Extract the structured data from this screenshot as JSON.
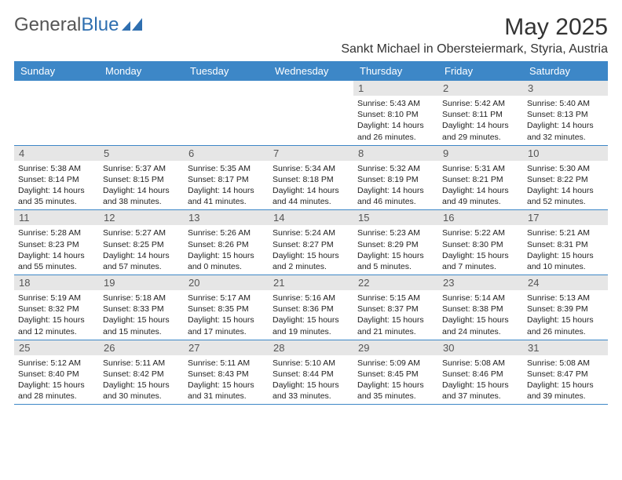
{
  "brand": {
    "part1": "General",
    "part2": "Blue"
  },
  "title": "May 2025",
  "location": "Sankt Michael in Obersteiermark, Styria, Austria",
  "colors": {
    "header_bg": "#3d87c7",
    "header_text": "#ffffff",
    "daynum_bg": "#e6e6e6",
    "border": "#3d87c7",
    "brand_blue": "#2f6fb0"
  },
  "weekdays": [
    "Sunday",
    "Monday",
    "Tuesday",
    "Wednesday",
    "Thursday",
    "Friday",
    "Saturday"
  ],
  "weeks": [
    [
      {
        "n": "",
        "sr": "",
        "ss": "",
        "dl": ""
      },
      {
        "n": "",
        "sr": "",
        "ss": "",
        "dl": ""
      },
      {
        "n": "",
        "sr": "",
        "ss": "",
        "dl": ""
      },
      {
        "n": "",
        "sr": "",
        "ss": "",
        "dl": ""
      },
      {
        "n": "1",
        "sr": "Sunrise: 5:43 AM",
        "ss": "Sunset: 8:10 PM",
        "dl": "Daylight: 14 hours and 26 minutes."
      },
      {
        "n": "2",
        "sr": "Sunrise: 5:42 AM",
        "ss": "Sunset: 8:11 PM",
        "dl": "Daylight: 14 hours and 29 minutes."
      },
      {
        "n": "3",
        "sr": "Sunrise: 5:40 AM",
        "ss": "Sunset: 8:13 PM",
        "dl": "Daylight: 14 hours and 32 minutes."
      }
    ],
    [
      {
        "n": "4",
        "sr": "Sunrise: 5:38 AM",
        "ss": "Sunset: 8:14 PM",
        "dl": "Daylight: 14 hours and 35 minutes."
      },
      {
        "n": "5",
        "sr": "Sunrise: 5:37 AM",
        "ss": "Sunset: 8:15 PM",
        "dl": "Daylight: 14 hours and 38 minutes."
      },
      {
        "n": "6",
        "sr": "Sunrise: 5:35 AM",
        "ss": "Sunset: 8:17 PM",
        "dl": "Daylight: 14 hours and 41 minutes."
      },
      {
        "n": "7",
        "sr": "Sunrise: 5:34 AM",
        "ss": "Sunset: 8:18 PM",
        "dl": "Daylight: 14 hours and 44 minutes."
      },
      {
        "n": "8",
        "sr": "Sunrise: 5:32 AM",
        "ss": "Sunset: 8:19 PM",
        "dl": "Daylight: 14 hours and 46 minutes."
      },
      {
        "n": "9",
        "sr": "Sunrise: 5:31 AM",
        "ss": "Sunset: 8:21 PM",
        "dl": "Daylight: 14 hours and 49 minutes."
      },
      {
        "n": "10",
        "sr": "Sunrise: 5:30 AM",
        "ss": "Sunset: 8:22 PM",
        "dl": "Daylight: 14 hours and 52 minutes."
      }
    ],
    [
      {
        "n": "11",
        "sr": "Sunrise: 5:28 AM",
        "ss": "Sunset: 8:23 PM",
        "dl": "Daylight: 14 hours and 55 minutes."
      },
      {
        "n": "12",
        "sr": "Sunrise: 5:27 AM",
        "ss": "Sunset: 8:25 PM",
        "dl": "Daylight: 14 hours and 57 minutes."
      },
      {
        "n": "13",
        "sr": "Sunrise: 5:26 AM",
        "ss": "Sunset: 8:26 PM",
        "dl": "Daylight: 15 hours and 0 minutes."
      },
      {
        "n": "14",
        "sr": "Sunrise: 5:24 AM",
        "ss": "Sunset: 8:27 PM",
        "dl": "Daylight: 15 hours and 2 minutes."
      },
      {
        "n": "15",
        "sr": "Sunrise: 5:23 AM",
        "ss": "Sunset: 8:29 PM",
        "dl": "Daylight: 15 hours and 5 minutes."
      },
      {
        "n": "16",
        "sr": "Sunrise: 5:22 AM",
        "ss": "Sunset: 8:30 PM",
        "dl": "Daylight: 15 hours and 7 minutes."
      },
      {
        "n": "17",
        "sr": "Sunrise: 5:21 AM",
        "ss": "Sunset: 8:31 PM",
        "dl": "Daylight: 15 hours and 10 minutes."
      }
    ],
    [
      {
        "n": "18",
        "sr": "Sunrise: 5:19 AM",
        "ss": "Sunset: 8:32 PM",
        "dl": "Daylight: 15 hours and 12 minutes."
      },
      {
        "n": "19",
        "sr": "Sunrise: 5:18 AM",
        "ss": "Sunset: 8:33 PM",
        "dl": "Daylight: 15 hours and 15 minutes."
      },
      {
        "n": "20",
        "sr": "Sunrise: 5:17 AM",
        "ss": "Sunset: 8:35 PM",
        "dl": "Daylight: 15 hours and 17 minutes."
      },
      {
        "n": "21",
        "sr": "Sunrise: 5:16 AM",
        "ss": "Sunset: 8:36 PM",
        "dl": "Daylight: 15 hours and 19 minutes."
      },
      {
        "n": "22",
        "sr": "Sunrise: 5:15 AM",
        "ss": "Sunset: 8:37 PM",
        "dl": "Daylight: 15 hours and 21 minutes."
      },
      {
        "n": "23",
        "sr": "Sunrise: 5:14 AM",
        "ss": "Sunset: 8:38 PM",
        "dl": "Daylight: 15 hours and 24 minutes."
      },
      {
        "n": "24",
        "sr": "Sunrise: 5:13 AM",
        "ss": "Sunset: 8:39 PM",
        "dl": "Daylight: 15 hours and 26 minutes."
      }
    ],
    [
      {
        "n": "25",
        "sr": "Sunrise: 5:12 AM",
        "ss": "Sunset: 8:40 PM",
        "dl": "Daylight: 15 hours and 28 minutes."
      },
      {
        "n": "26",
        "sr": "Sunrise: 5:11 AM",
        "ss": "Sunset: 8:42 PM",
        "dl": "Daylight: 15 hours and 30 minutes."
      },
      {
        "n": "27",
        "sr": "Sunrise: 5:11 AM",
        "ss": "Sunset: 8:43 PM",
        "dl": "Daylight: 15 hours and 31 minutes."
      },
      {
        "n": "28",
        "sr": "Sunrise: 5:10 AM",
        "ss": "Sunset: 8:44 PM",
        "dl": "Daylight: 15 hours and 33 minutes."
      },
      {
        "n": "29",
        "sr": "Sunrise: 5:09 AM",
        "ss": "Sunset: 8:45 PM",
        "dl": "Daylight: 15 hours and 35 minutes."
      },
      {
        "n": "30",
        "sr": "Sunrise: 5:08 AM",
        "ss": "Sunset: 8:46 PM",
        "dl": "Daylight: 15 hours and 37 minutes."
      },
      {
        "n": "31",
        "sr": "Sunrise: 5:08 AM",
        "ss": "Sunset: 8:47 PM",
        "dl": "Daylight: 15 hours and 39 minutes."
      }
    ]
  ]
}
